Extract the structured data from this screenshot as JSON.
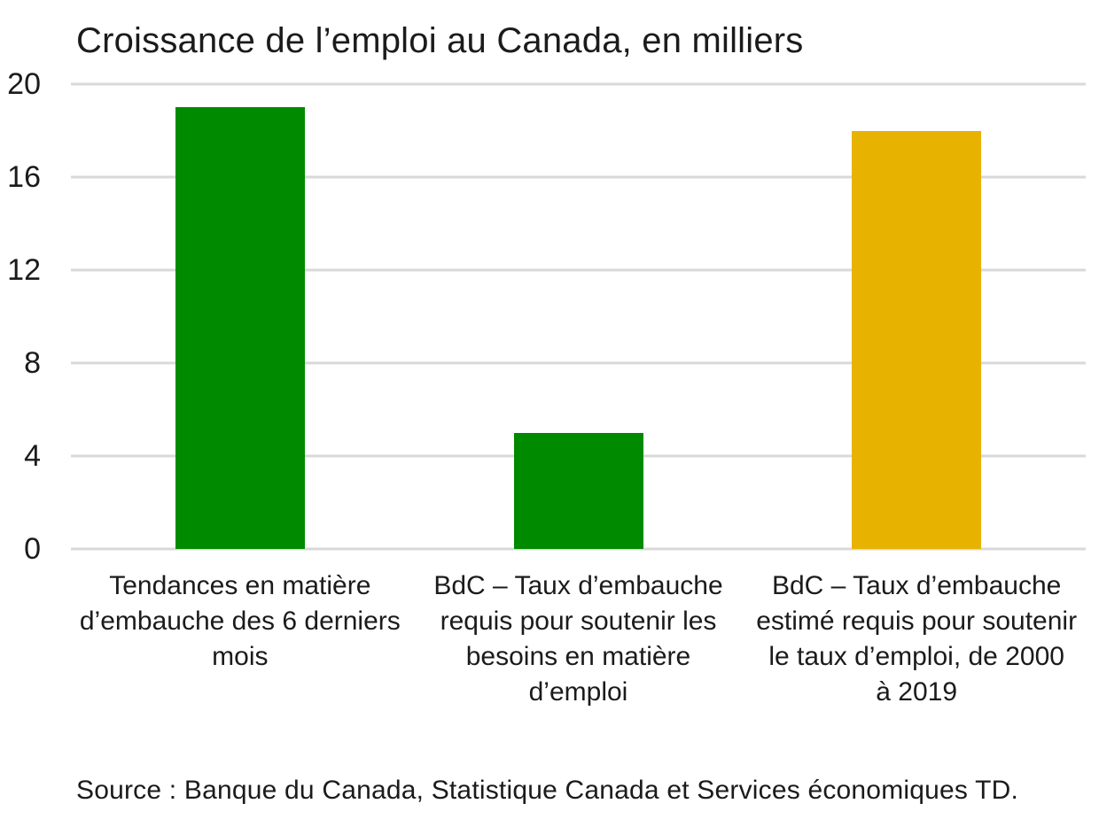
{
  "title": "Croissance de l’emploi au Canada, en milliers",
  "source_note": "Source : Banque du Canada, Statistique Canada et Services économiques TD.",
  "colors": {
    "background": "#ffffff",
    "text": "#1b1b1b",
    "gridline": "#d9d9d9",
    "green_bar": "#008a00",
    "gold_bar": "#e8b200"
  },
  "chart_data": {
    "type": "bar",
    "title": "Croissance de l’emploi au Canada, en milliers",
    "categories": [
      "Tendances en matière\nd’embauche des 6 derniers\nmois",
      "BdC – Taux d’embauche\nrequis pour soutenir les\nbesoins en matière\nd’emploi",
      "BdC – Taux d’embauche\nestimé requis pour soutenir\nle taux d’emploi, de 2000\nà 2019"
    ],
    "values": [
      19,
      5,
      18
    ],
    "bar_colors": [
      "#008a00",
      "#008a00",
      "#e8b200"
    ],
    "xlabel": "",
    "ylabel": "",
    "ylim": [
      0,
      20
    ],
    "yticks": [
      0,
      4,
      8,
      12,
      16,
      20
    ],
    "grid": "horizontal",
    "legend": "none",
    "source": "Source : Banque du Canada, Statistique Canada et Services économiques TD."
  }
}
